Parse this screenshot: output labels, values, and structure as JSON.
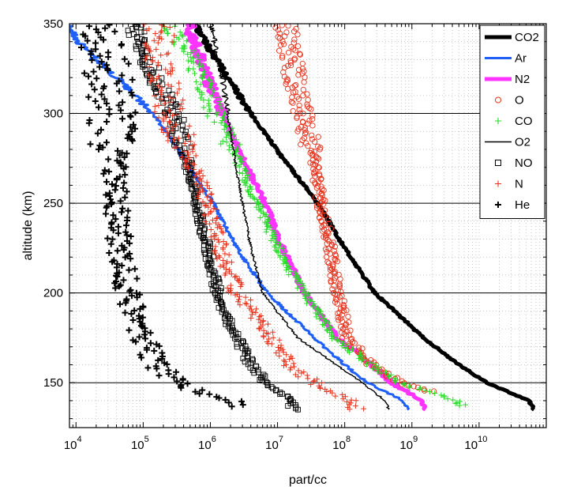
{
  "chart_data": {
    "type": "scatter",
    "title": "",
    "xlabel": "part/cc",
    "ylabel": "altitude (km)",
    "xscale": "log",
    "xlim": [
      8000,
      100000000000
    ],
    "ylim": [
      125,
      350
    ],
    "x_ticks": [
      {
        "base": "10",
        "exp": "4",
        "value": 10000
      },
      {
        "base": "10",
        "exp": "5",
        "value": 100000
      },
      {
        "base": "10",
        "exp": "6",
        "value": 1000000
      },
      {
        "base": "10",
        "exp": "7",
        "value": 10000000
      },
      {
        "base": "10",
        "exp": "8",
        "value": 100000000
      },
      {
        "base": "10",
        "exp": "9",
        "value": 1000000000
      },
      {
        "base": "10",
        "exp": "10",
        "value": 10000000000
      }
    ],
    "y_ticks": [
      "150",
      "200",
      "250",
      "300",
      "350"
    ],
    "major_gridlines_y": [
      150,
      200,
      250,
      300,
      350
    ],
    "grid": "minor dotted",
    "legend_position": "top-right",
    "series": [
      {
        "name": "CO2",
        "marker": "line-thick",
        "color": "#000000",
        "alt": [
          135,
          140,
          150,
          160,
          175,
          200,
          225,
          250,
          275,
          300,
          320,
          335,
          345,
          350
        ],
        "density": [
          65000000000,
          55000000000,
          13000000000,
          5000000000,
          1500000000,
          280000000,
          100000000,
          40000000,
          12000000,
          4000000,
          1800000,
          1000000,
          700000,
          600000
        ]
      },
      {
        "name": "Ar",
        "marker": "line",
        "color": "#1f5ff5",
        "alt": [
          135,
          140,
          150,
          160,
          175,
          200,
          225,
          250,
          275,
          300,
          320,
          335,
          345,
          350
        ],
        "density": [
          900000000,
          750000000,
          220000000,
          100000000,
          35000000,
          7000000,
          2500000,
          1100000,
          400000,
          140000,
          40000,
          14000,
          9000,
          8000
        ]
      },
      {
        "name": "N2",
        "marker": "line-thick",
        "color": "#ff33ff",
        "alt": [
          135,
          140,
          150,
          160,
          175,
          200,
          225,
          250,
          275,
          300,
          320,
          335,
          345,
          350
        ],
        "density": [
          1600000000,
          1400000000,
          500000000,
          250000000,
          80000000,
          25000000,
          12000000,
          6500000,
          3000000,
          1500000,
          900000,
          650000,
          500000,
          500000
        ]
      },
      {
        "name": "O",
        "marker": "circle",
        "color": "#e8311b",
        "alt": [
          145,
          150,
          160,
          175,
          200,
          225,
          250,
          275,
          300,
          320,
          335,
          345,
          350
        ],
        "density": [
          1800000000,
          700000000,
          250000000,
          110000000,
          80000000,
          60000000,
          45000000,
          35000000,
          25000000,
          18000000,
          15000000,
          14000000,
          13000000
        ]
      },
      {
        "name": "CO",
        "marker": "plus",
        "color": "#22dd22",
        "alt": [
          137,
          140,
          150,
          160,
          175,
          200,
          225,
          250,
          275,
          300,
          320,
          335,
          345,
          350
        ],
        "density": [
          6000000000,
          4500000000,
          650000000,
          250000000,
          70000000,
          25000000,
          10000000,
          5000000,
          2500000,
          1200000,
          700000,
          450000,
          300000,
          250000
        ]
      },
      {
        "name": "O2",
        "marker": "line-thin",
        "color": "#000000",
        "alt": [
          135,
          140,
          150,
          160,
          175,
          200,
          225,
          250,
          275,
          300,
          320,
          335,
          345,
          350
        ],
        "density": [
          450000000,
          400000000,
          180000000,
          75000000,
          20000000,
          6000000,
          4000000,
          3000000,
          2300000,
          1800000,
          1500000,
          1200000,
          1100000,
          1000000
        ]
      },
      {
        "name": "NO",
        "marker": "square",
        "color": "#000000",
        "alt": [
          135,
          140,
          150,
          160,
          175,
          190,
          200,
          225,
          250,
          275,
          300,
          320,
          335,
          345,
          350
        ],
        "density": [
          18000000,
          15000000,
          7000000,
          4000000,
          2500000,
          1500000,
          1300000,
          900000,
          600000,
          450000,
          280000,
          150000,
          100000,
          80000,
          70000
        ]
      },
      {
        "name": "N",
        "marker": "plus",
        "color": "#e8311b",
        "alt": [
          135,
          140,
          150,
          160,
          175,
          200,
          225,
          250,
          275,
          300,
          320,
          335,
          345,
          350
        ],
        "density": [
          150000000,
          120000000,
          35000000,
          15000000,
          8000000,
          2500000,
          1400000,
          900000,
          500000,
          250000,
          200000,
          180000,
          170000,
          160000
        ]
      },
      {
        "name": "He",
        "marker": "plus-thick",
        "color": "#000000",
        "alt": [
          137,
          140,
          145,
          150,
          160,
          175,
          200,
          225,
          250,
          275,
          300,
          320,
          335,
          345,
          350
        ],
        "density": [
          3000000,
          2500000,
          800000,
          300000,
          160000,
          100000,
          60000,
          45000,
          40000,
          38000,
          35000,
          30000,
          28000,
          25000,
          22000
        ]
      }
    ]
  }
}
